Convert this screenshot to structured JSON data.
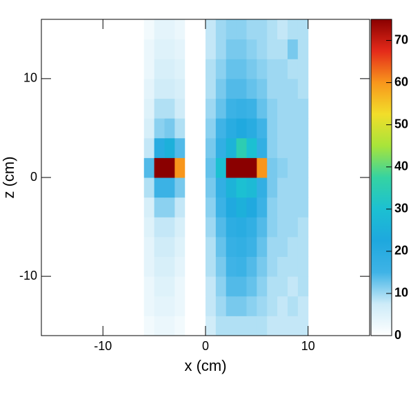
{
  "chart_data": {
    "type": "heatmap",
    "x_label": "x (cm)",
    "y_label": "z (cm)",
    "xlim": [
      -16,
      16
    ],
    "ylim": [
      -16,
      16
    ],
    "zlim": [
      0,
      75
    ],
    "xticks": [
      -10,
      0,
      10
    ],
    "yticks": [
      -10,
      0,
      10
    ],
    "zticks": [
      0,
      10,
      20,
      30,
      40,
      50,
      60,
      70
    ],
    "colorscale": [
      "#ffffff",
      "#cdebf8",
      "#3fb3e6",
      "#1ea8de",
      "#1cc0d2",
      "#35d3a2",
      "#a8e43a",
      "#f2de2a",
      "#f8961c",
      "#e42a1a",
      "#8a0000"
    ],
    "x_edges": [
      -7,
      -6,
      -5,
      -4,
      -3,
      -2,
      -1,
      0,
      1,
      2,
      3,
      4,
      5,
      6,
      7,
      8,
      9,
      10
    ],
    "y_edges": [
      -16,
      -14,
      -12,
      -10,
      -8,
      -6,
      -4,
      -2,
      0,
      2,
      4,
      6,
      8,
      10,
      12,
      14,
      16
    ],
    "z": [
      [
        0,
        2,
        3,
        3,
        2,
        0,
        0,
        7,
        9,
        9,
        9,
        9,
        9,
        8,
        8,
        8,
        8
      ],
      [
        0,
        3,
        4,
        4,
        3,
        0,
        0,
        8,
        10,
        12,
        12,
        11,
        10,
        9,
        8,
        9,
        8
      ],
      [
        0,
        3,
        5,
        5,
        3,
        0,
        0,
        8,
        11,
        14,
        14,
        13,
        11,
        9,
        9,
        8,
        9
      ],
      [
        0,
        4,
        6,
        6,
        4,
        0,
        0,
        9,
        12,
        15,
        16,
        14,
        12,
        10,
        9,
        9,
        9
      ],
      [
        0,
        4,
        7,
        7,
        5,
        0,
        0,
        9,
        13,
        17,
        18,
        16,
        13,
        10,
        10,
        9,
        9
      ],
      [
        0,
        5,
        8,
        8,
        6,
        0,
        0,
        10,
        14,
        19,
        20,
        18,
        14,
        11,
        10,
        10,
        9
      ],
      [
        0,
        6,
        11,
        11,
        8,
        0,
        0,
        11,
        16,
        22,
        25,
        22,
        16,
        11,
        10,
        10,
        10
      ],
      [
        0,
        9,
        16,
        16,
        12,
        0,
        0,
        12,
        18,
        26,
        30,
        28,
        18,
        12,
        10,
        10,
        10
      ],
      [
        0,
        14,
        75,
        75,
        60,
        0,
        0,
        13,
        30,
        75,
        75,
        75,
        60,
        12,
        11,
        10,
        10
      ],
      [
        0,
        8,
        20,
        25,
        14,
        0,
        0,
        12,
        18,
        26,
        35,
        30,
        18,
        11,
        10,
        10,
        10
      ],
      [
        0,
        6,
        11,
        12,
        9,
        0,
        0,
        11,
        15,
        20,
        22,
        20,
        15,
        11,
        10,
        10,
        10
      ],
      [
        0,
        5,
        9,
        9,
        7,
        0,
        0,
        10,
        13,
        16,
        17,
        16,
        13,
        11,
        10,
        10,
        10
      ],
      [
        0,
        4,
        7,
        7,
        6,
        0,
        0,
        9,
        12,
        14,
        14,
        13,
        12,
        10,
        10,
        10,
        9
      ],
      [
        0,
        3,
        6,
        6,
        5,
        0,
        0,
        9,
        11,
        13,
        13,
        12,
        11,
        10,
        10,
        9,
        9
      ],
      [
        0,
        3,
        5,
        5,
        4,
        0,
        0,
        8,
        10,
        12,
        12,
        11,
        10,
        9,
        9,
        12,
        9
      ],
      [
        0,
        2,
        4,
        4,
        3,
        0,
        0,
        8,
        10,
        11,
        11,
        10,
        10,
        9,
        8,
        9,
        9
      ]
    ]
  }
}
